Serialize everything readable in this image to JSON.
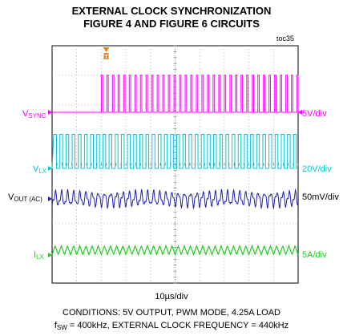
{
  "chart_data": {
    "type": "line",
    "title": "EXTERNAL CLOCK SYNCHRONIZATION",
    "subtitle": "FIGURE 4 AND FIGURE 6 CIRCUITS",
    "corner_tag": "toc35",
    "time_scale": "10µs/div",
    "grid": true,
    "divisions": {
      "horizontal": 10,
      "vertical": 8
    },
    "conditions_line1": "CONDITIONS: 5V OUTPUT, PWM MODE, 4.25A LOAD",
    "conditions_line2": {
      "prefix": "f",
      "subscript": "SW",
      "text": " = 400kHz, EXTERNAL CLOCK FREQUENCY = 440kHz"
    },
    "trigger_marker": {
      "label": "T",
      "color": "#f07e1e"
    },
    "series": [
      {
        "name": "V",
        "subscript": "SYNC",
        "scale": "5V/div",
        "color": "#ff00ff",
        "waveform": "clock",
        "frequency_khz": 440,
        "start_div": 2.0,
        "low_div": 0.0,
        "high_div": 1.25
      },
      {
        "name": "V",
        "subscript": "LX",
        "scale": "20V/div",
        "color": "#00c8d8",
        "waveform": "switching",
        "frequency_khz": 400,
        "low_div": 0.0,
        "high_div": 1.15
      },
      {
        "name": "V",
        "subscript": "OUT (AC)",
        "scale": "50mV/div",
        "color": "#2020b0",
        "waveform": "ripple",
        "ripple_mv_pp": 25
      },
      {
        "name": "I",
        "subscript": "LX",
        "scale": "5A/div",
        "color": "#22cc22",
        "waveform": "triangle",
        "current_a_pp": 1.5
      }
    ]
  }
}
